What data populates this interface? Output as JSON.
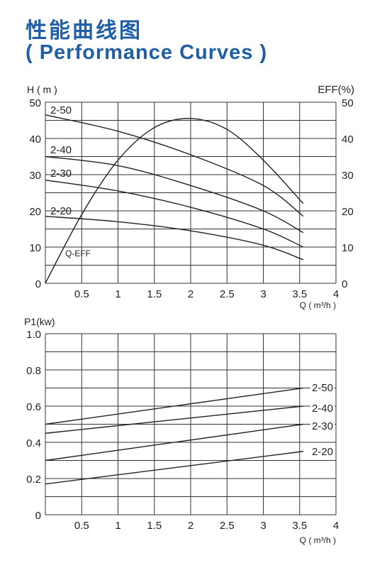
{
  "header": {
    "title_cn": "性能曲线图",
    "title_en": "( Performance Curves )"
  },
  "colors": {
    "title": "#1f5fa8",
    "grid": "#333333",
    "curve": "#222222"
  },
  "chart_data": [
    {
      "type": "line",
      "ylabel": "H ( m )",
      "y2label": "EFF(%)",
      "xlabel": "Q ( m³/h )",
      "xlim": [
        0,
        4
      ],
      "ylim": [
        0,
        50
      ],
      "y2lim": [
        0,
        50
      ],
      "x_ticks": [
        "0.5",
        "1",
        "1.5",
        "2",
        "2.5",
        "3",
        "3.5",
        "4"
      ],
      "y_ticks": [
        "0",
        "10",
        "20",
        "30",
        "40",
        "50"
      ],
      "y2_ticks": [
        "0",
        "10",
        "20",
        "30",
        "40",
        "50"
      ],
      "grid": true,
      "series": [
        {
          "name": "2-50",
          "x": [
            0,
            1,
            2,
            3,
            3.55
          ],
          "y": [
            46.5,
            42,
            35.5,
            27,
            18.5
          ]
        },
        {
          "name": "2-40",
          "x": [
            0,
            1,
            2,
            3,
            3.55
          ],
          "y": [
            35,
            32.5,
            27,
            20,
            14
          ]
        },
        {
          "name": "2-30",
          "x": [
            0,
            1,
            2,
            3,
            3.55
          ],
          "y": [
            28.5,
            25.5,
            21,
            15,
            10
          ]
        },
        {
          "name": "2-20",
          "x": [
            0,
            1,
            2,
            3,
            3.55
          ],
          "y": [
            18.5,
            17,
            14.5,
            10.5,
            6.5
          ]
        },
        {
          "name": "Q-EFF",
          "axis": "right",
          "x": [
            0,
            0.5,
            1,
            1.5,
            2,
            2.5,
            3,
            3.55
          ],
          "y": [
            0,
            19,
            34,
            43,
            45.5,
            42.5,
            34,
            22
          ]
        }
      ]
    },
    {
      "type": "line",
      "ylabel": "P1(kw)",
      "xlabel": "Q ( m³/h )",
      "xlim": [
        0,
        4
      ],
      "ylim": [
        0,
        1.0
      ],
      "x_ticks": [
        "0.5",
        "1",
        "1.5",
        "2",
        "2.5",
        "3",
        "3.5",
        "4"
      ],
      "y_ticks": [
        "0",
        "0.2",
        "0.4",
        "0.6",
        "0.8",
        "1.0"
      ],
      "grid": true,
      "series": [
        {
          "name": "2-50",
          "x": [
            0,
            3.55
          ],
          "y": [
            0.5,
            0.7
          ]
        },
        {
          "name": "2-40",
          "x": [
            0,
            3.55
          ],
          "y": [
            0.45,
            0.6
          ]
        },
        {
          "name": "2-30",
          "x": [
            0,
            3.55
          ],
          "y": [
            0.3,
            0.5
          ]
        },
        {
          "name": "2-20",
          "x": [
            0,
            3.55
          ],
          "y": [
            0.17,
            0.35
          ]
        }
      ]
    }
  ]
}
